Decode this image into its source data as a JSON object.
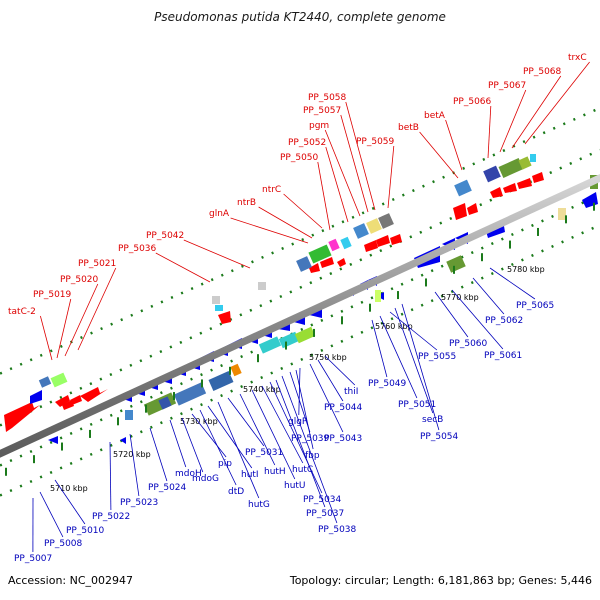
{
  "title": "Pseudomonas putida KT2440, complete genome",
  "accession": "Accession: NC_002947",
  "summary": "Topology: circular; Length: 6,181,863 bp; Genes: 5,446",
  "colors": {
    "forward_label": "#dd0000",
    "reverse_label": "#0000bb",
    "forward_arrow": "#ff0000",
    "reverse_arrow": "#0000ee",
    "backbone": "#888888",
    "tick": "#1b7a1b"
  },
  "scale": {
    "ticks": [
      "5710 kbp",
      "5720 kbp",
      "5730 kbp",
      "5740 kbp",
      "5750 kbp",
      "5760 kbp",
      "5770 kbp",
      "5780 kbp"
    ]
  },
  "forward_labels": [
    "tatC-2",
    "PP_5019",
    "PP_5020",
    "PP_5021",
    "PP_5036",
    "PP_5042",
    "glnA",
    "ntrB",
    "ntrC",
    "PP_5050",
    "PP_5052",
    "pgm",
    "PP_5057",
    "PP_5058",
    "PP_5059",
    "betB",
    "betA",
    "PP_5066",
    "PP_5067",
    "PP_5068",
    "trxC"
  ],
  "reverse_labels": [
    "PP_5007",
    "PP_5008",
    "PP_5010",
    "PP_5022",
    "PP_5023",
    "PP_5024",
    "mdoH",
    "mdoG",
    "pip",
    "dtD",
    "hutI",
    "hutG",
    "PP_5031",
    "hutH",
    "hutU",
    "hutC",
    "PP_5034",
    "PP_5037",
    "PP_5038",
    "PP_5039",
    "fbp",
    "glgP",
    "PP_5043",
    "PP_5044",
    "thiI",
    "PP_5049",
    "PP_5051",
    "PP_5055",
    "secB",
    "PP_5054",
    "PP_5060",
    "PP_5061",
    "PP_5062",
    "PP_5065"
  ]
}
